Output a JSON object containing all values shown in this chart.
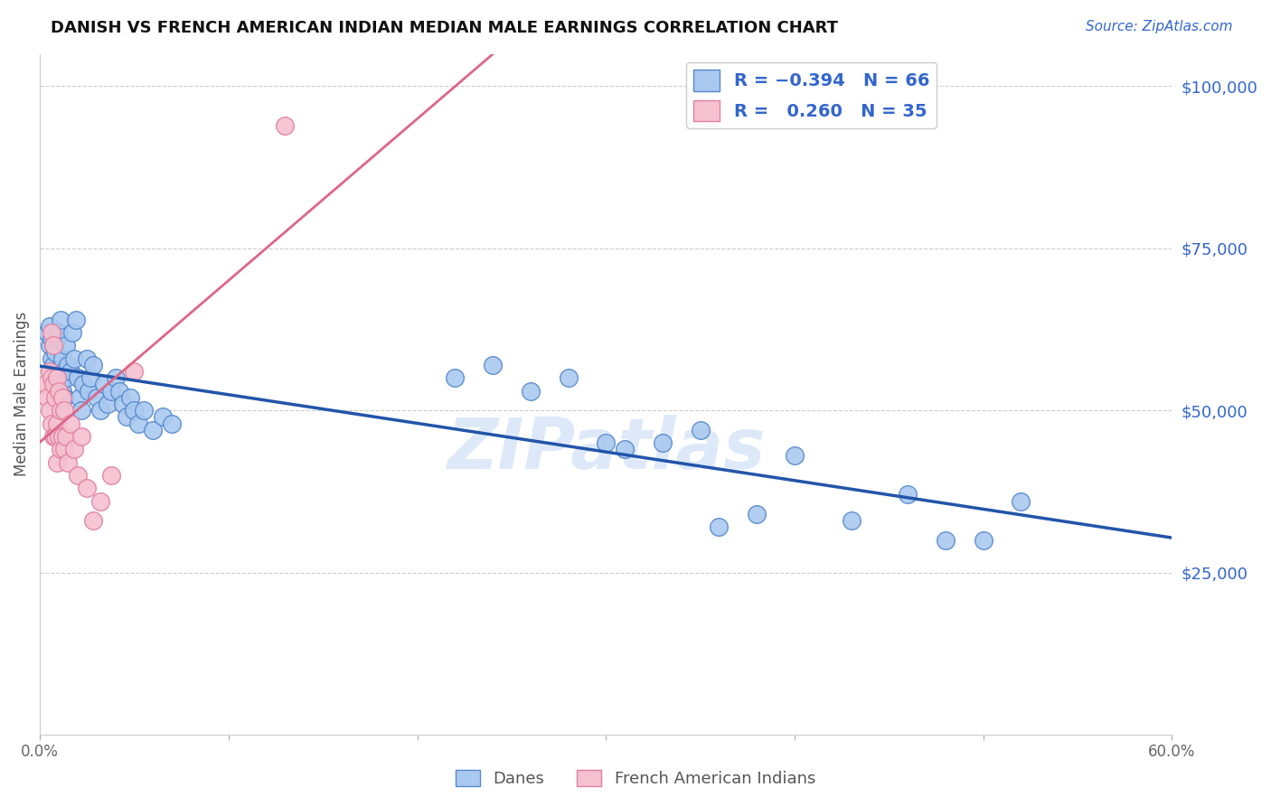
{
  "title": "DANISH VS FRENCH AMERICAN INDIAN MEDIAN MALE EARNINGS CORRELATION CHART",
  "source": "Source: ZipAtlas.com",
  "ylabel": "Median Male Earnings",
  "xlim": [
    0.0,
    0.6
  ],
  "ylim": [
    0,
    105000
  ],
  "blue_R": -0.394,
  "blue_N": 66,
  "pink_R": 0.26,
  "pink_N": 35,
  "blue_color": "#aac9f0",
  "blue_edge_color": "#5588cc",
  "blue_line_color": "#2255aa",
  "pink_color": "#f5c0d0",
  "pink_edge_color": "#e080a0",
  "pink_line_color": "#dd6688",
  "dashed_line_color": "#ccbbbb",
  "watermark": "ZIPatlas",
  "background_color": "#ffffff",
  "grid_color": "#cccccc",
  "blue_x": [
    0.004,
    0.005,
    0.005,
    0.006,
    0.006,
    0.007,
    0.007,
    0.008,
    0.008,
    0.009,
    0.009,
    0.01,
    0.01,
    0.011,
    0.011,
    0.012,
    0.012,
    0.013,
    0.013,
    0.014,
    0.014,
    0.015,
    0.016,
    0.017,
    0.018,
    0.019,
    0.02,
    0.021,
    0.022,
    0.023,
    0.025,
    0.026,
    0.027,
    0.028,
    0.03,
    0.032,
    0.034,
    0.036,
    0.038,
    0.04,
    0.042,
    0.044,
    0.046,
    0.048,
    0.05,
    0.052,
    0.055,
    0.06,
    0.065,
    0.07,
    0.3,
    0.31,
    0.36,
    0.38,
    0.4,
    0.43,
    0.46,
    0.48,
    0.5,
    0.52,
    0.33,
    0.35,
    0.28,
    0.26,
    0.24,
    0.22
  ],
  "blue_y": [
    62000,
    63000,
    60000,
    61000,
    58000,
    60000,
    57000,
    59000,
    56000,
    61000,
    55000,
    62000,
    56000,
    64000,
    54000,
    58000,
    53000,
    56000,
    52000,
    60000,
    55000,
    57000,
    56000,
    62000,
    58000,
    64000,
    55000,
    52000,
    50000,
    54000,
    58000,
    53000,
    55000,
    57000,
    52000,
    50000,
    54000,
    51000,
    53000,
    55000,
    53000,
    51000,
    49000,
    52000,
    50000,
    48000,
    50000,
    47000,
    49000,
    48000,
    45000,
    44000,
    32000,
    34000,
    43000,
    33000,
    37000,
    30000,
    30000,
    36000,
    45000,
    47000,
    55000,
    53000,
    57000,
    55000
  ],
  "pink_x": [
    0.003,
    0.004,
    0.005,
    0.005,
    0.006,
    0.006,
    0.006,
    0.007,
    0.007,
    0.007,
    0.008,
    0.008,
    0.009,
    0.009,
    0.009,
    0.01,
    0.01,
    0.011,
    0.011,
    0.012,
    0.012,
    0.013,
    0.013,
    0.014,
    0.015,
    0.016,
    0.018,
    0.02,
    0.022,
    0.025,
    0.028,
    0.032,
    0.038,
    0.13,
    0.05
  ],
  "pink_y": [
    54000,
    52000,
    56000,
    50000,
    62000,
    55000,
    48000,
    60000,
    54000,
    46000,
    52000,
    46000,
    55000,
    48000,
    42000,
    53000,
    46000,
    50000,
    44000,
    52000,
    46000,
    50000,
    44000,
    46000,
    42000,
    48000,
    44000,
    40000,
    46000,
    38000,
    33000,
    36000,
    40000,
    94000,
    56000
  ]
}
